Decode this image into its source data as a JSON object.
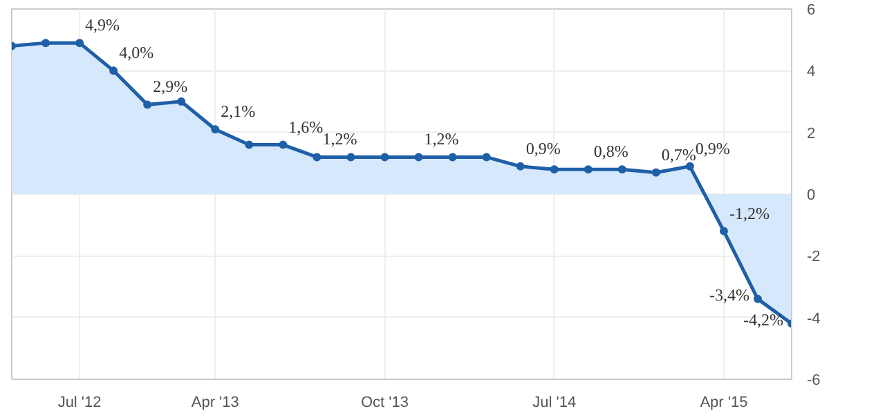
{
  "chart_data": {
    "type": "area",
    "categories": [
      null,
      null,
      "Jul '12",
      null,
      null,
      null,
      "Apr '13",
      null,
      null,
      null,
      null,
      "Oct '13",
      null,
      null,
      null,
      null,
      "Jul '14",
      null,
      null,
      null,
      null,
      "Apr '15",
      null,
      null
    ],
    "series": [
      {
        "color": "#1f5fa8",
        "values": [
          4.8,
          4.9,
          4.9,
          4.0,
          2.9,
          3.0,
          2.1,
          1.6,
          1.6,
          1.2,
          1.2,
          1.2,
          1.2,
          1.2,
          1.2,
          0.9,
          0.8,
          0.8,
          0.8,
          0.7,
          0.9,
          -1.2,
          -3.4,
          -4.2
        ],
        "value_labels": [
          null,
          null,
          "4,9%",
          "4,0%",
          "2,9%",
          null,
          "2,1%",
          null,
          "1,6%",
          "1,2%",
          null,
          null,
          "1,2%",
          null,
          null,
          "0,9%",
          null,
          "0,8%",
          null,
          "0,7%",
          "0,9%",
          "-1,2%",
          "-3,4%",
          "-4,2%"
        ]
      }
    ],
    "ylim": [
      -6,
      6
    ],
    "yticks": [
      -6,
      -4,
      -2,
      0,
      2,
      4,
      6
    ],
    "grid": true,
    "marker": "circle",
    "line_style": "solid"
  }
}
